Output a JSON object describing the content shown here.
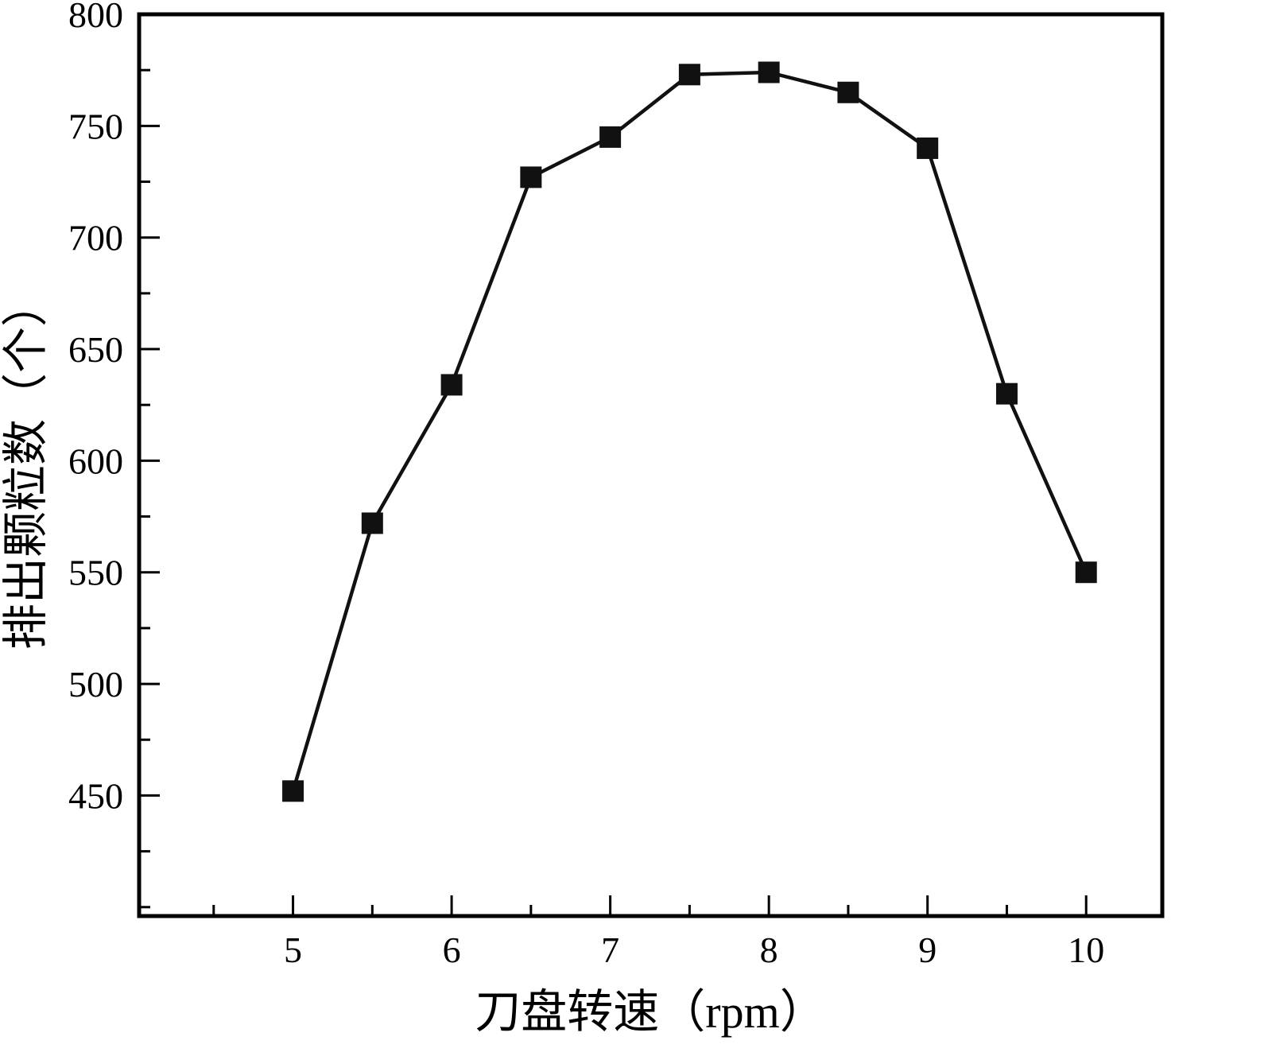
{
  "chart_data": {
    "type": "line",
    "title": "",
    "xlabel": "刀盘转速（rpm）",
    "ylabel": "排出颗粒数（个）",
    "x": [
      5,
      5.5,
      6,
      6.5,
      7,
      7.5,
      8,
      8.5,
      9,
      9.5,
      10
    ],
    "values": [
      452,
      572,
      634,
      727,
      745,
      773,
      774,
      765,
      740,
      630,
      550
    ],
    "xlim": [
      4.03,
      10.48
    ],
    "ylim": [
      396,
      800
    ],
    "xticks": [
      5,
      6,
      7,
      8,
      9,
      10
    ],
    "yticks": [
      450,
      500,
      550,
      600,
      650,
      700,
      750,
      800
    ],
    "x_minor_step": 0.5,
    "y_minor_step": 25,
    "legend": "none",
    "grid": false,
    "marker": "square",
    "line_color": "#111111",
    "marker_color": "#111111",
    "axis_color": "#000000",
    "background": "#ffffff"
  }
}
